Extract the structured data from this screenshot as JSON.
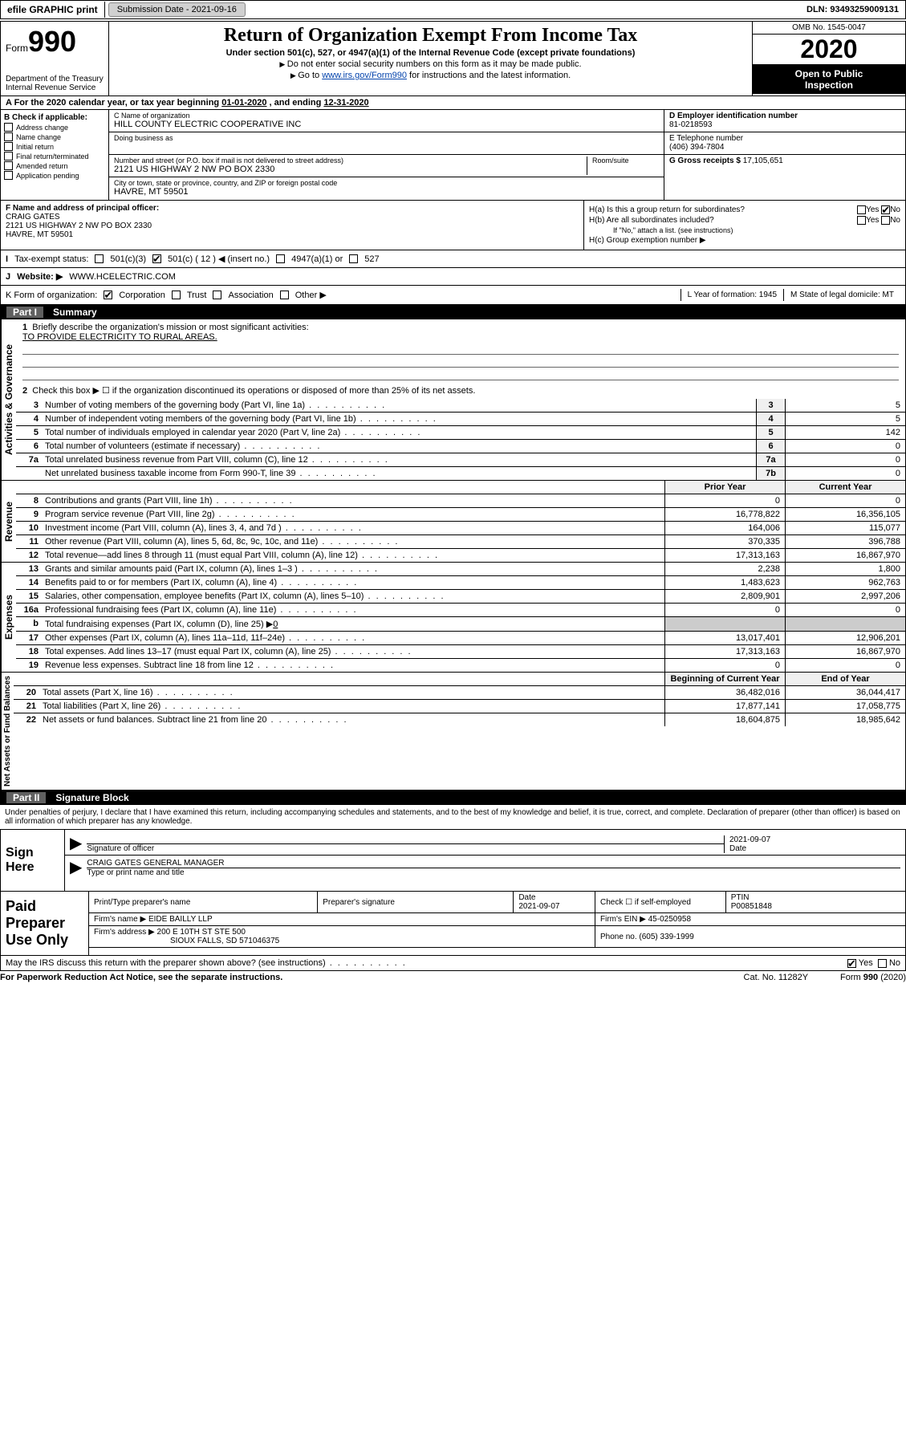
{
  "topbar": {
    "efile": "efile GRAPHIC print",
    "subdate_label": "Submission Date - ",
    "subdate": "2021-09-16",
    "dln_label": "DLN: ",
    "dln": "93493259009131"
  },
  "header": {
    "form_word": "Form",
    "form_num": "990",
    "dept1": "Department of the Treasury",
    "dept2": "Internal Revenue Service",
    "title": "Return of Organization Exempt From Income Tax",
    "sub": "Under section 501(c), 527, or 4947(a)(1) of the Internal Revenue Code (except private foundations)",
    "note1": "Do not enter social security numbers on this form as it may be made public.",
    "note2_pre": "Go to ",
    "note2_link": "www.irs.gov/Form990",
    "note2_post": " for instructions and the latest information.",
    "omb": "OMB No. 1545-0047",
    "year": "2020",
    "open1": "Open to Public",
    "open2": "Inspection"
  },
  "row_a": {
    "pre": "A For the 2020 calendar year, or tax year beginning ",
    "begin": "01-01-2020",
    "mid": " , and ending ",
    "end": "12-31-2020"
  },
  "col_b": {
    "label": "B Check if applicable:",
    "c1": "Address change",
    "c2": "Name change",
    "c3": "Initial return",
    "c4": "Final return/terminated",
    "c5": "Amended return",
    "c6": "Application pending"
  },
  "col_c": {
    "name_label": "C Name of organization",
    "name": "HILL COUNTY ELECTRIC COOPERATIVE INC",
    "dba_label": "Doing business as",
    "dba": "",
    "addr_label": "Number and street (or P.O. box if mail is not delivered to street address)",
    "room_label": "Room/suite",
    "addr": "2121 US HIGHWAY 2 NW PO BOX 2330",
    "city_label": "City or town, state or province, country, and ZIP or foreign postal code",
    "city": "HAVRE, MT  59501"
  },
  "col_d": {
    "ein_label": "D Employer identification number",
    "ein": "81-0218593",
    "phone_label": "E Telephone number",
    "phone": "(406) 394-7804",
    "gross_label": "G Gross receipts $",
    "gross": "17,105,651"
  },
  "row_f": {
    "label": "F  Name and address of principal officer:",
    "name": "CRAIG GATES",
    "addr1": "2121 US HIGHWAY 2 NW PO BOX 2330",
    "addr2": "HAVRE, MT  59501",
    "ha": "H(a)  Is this a group return for subordinates?",
    "hb": "H(b)  Are all subordinates included?",
    "hb_note": "If \"No,\" attach a list. (see instructions)",
    "hc": "H(c)  Group exemption number ▶",
    "yes": "Yes",
    "no": "No"
  },
  "row_i": {
    "label": "Tax-exempt status:",
    "o1": "501(c)(3)",
    "o2": "501(c) ( 12 ) ◀ (insert no.)",
    "o3": "4947(a)(1) or",
    "o4": "527"
  },
  "row_j": {
    "label": "J",
    "website_label": "Website: ▶",
    "website": "WWW.HCELECTRIC.COM"
  },
  "row_k": {
    "label": "K Form of organization:",
    "o1": "Corporation",
    "o2": "Trust",
    "o3": "Association",
    "o4": "Other ▶",
    "yof_label": "L Year of formation: ",
    "yof": "1945",
    "dom_label": "M State of legal domicile: ",
    "dom": "MT"
  },
  "part1": {
    "part": "Part I",
    "title": "Summary",
    "side_gov": "Activities & Governance",
    "side_rev": "Revenue",
    "side_exp": "Expenses",
    "side_net": "Net Assets or Fund Balances",
    "l1": "Briefly describe the organization's mission or most significant activities:",
    "l1v": "TO PROVIDE ELECTRICITY TO RURAL AREAS.",
    "l2": "Check this box ▶ ☐  if the organization discontinued its operations or disposed of more than 25% of its net assets.",
    "lines": {
      "3": {
        "d": "Number of voting members of the governing body (Part VI, line 1a)",
        "b": "3",
        "v": "5"
      },
      "4": {
        "d": "Number of independent voting members of the governing body (Part VI, line 1b)",
        "b": "4",
        "v": "5"
      },
      "5": {
        "d": "Total number of individuals employed in calendar year 2020 (Part V, line 2a)",
        "b": "5",
        "v": "142"
      },
      "6": {
        "d": "Total number of volunteers (estimate if necessary)",
        "b": "6",
        "v": "0"
      },
      "7a": {
        "d": "Total unrelated business revenue from Part VIII, column (C), line 12",
        "b": "7a",
        "v": "0"
      },
      "7b": {
        "d": "Net unrelated business taxable income from Form 990-T, line 39",
        "b": "7b",
        "v": "0"
      }
    },
    "hdr_prior": "Prior Year",
    "hdr_curr": "Current Year",
    "rev": {
      "8": {
        "d": "Contributions and grants (Part VIII, line 1h)",
        "p": "0",
        "c": "0"
      },
      "9": {
        "d": "Program service revenue (Part VIII, line 2g)",
        "p": "16,778,822",
        "c": "16,356,105"
      },
      "10": {
        "d": "Investment income (Part VIII, column (A), lines 3, 4, and 7d )",
        "p": "164,006",
        "c": "115,077"
      },
      "11": {
        "d": "Other revenue (Part VIII, column (A), lines 5, 6d, 8c, 9c, 10c, and 11e)",
        "p": "370,335",
        "c": "396,788"
      },
      "12": {
        "d": "Total revenue—add lines 8 through 11 (must equal Part VIII, column (A), line 12)",
        "p": "17,313,163",
        "c": "16,867,970"
      }
    },
    "exp": {
      "13": {
        "d": "Grants and similar amounts paid (Part IX, column (A), lines 1–3 )",
        "p": "2,238",
        "c": "1,800"
      },
      "14": {
        "d": "Benefits paid to or for members (Part IX, column (A), line 4)",
        "p": "1,483,623",
        "c": "962,763"
      },
      "15": {
        "d": "Salaries, other compensation, employee benefits (Part IX, column (A), lines 5–10)",
        "p": "2,809,901",
        "c": "2,997,206"
      },
      "16a": {
        "d": "Professional fundraising fees (Part IX, column (A), line 11e)",
        "p": "0",
        "c": "0"
      },
      "16b": {
        "d": "Total fundraising expenses (Part IX, column (D), line 25) ▶",
        "v": "0"
      },
      "17": {
        "d": "Other expenses (Part IX, column (A), lines 11a–11d, 11f–24e)",
        "p": "13,017,401",
        "c": "12,906,201"
      },
      "18": {
        "d": "Total expenses. Add lines 13–17 (must equal Part IX, column (A), line 25)",
        "p": "17,313,163",
        "c": "16,867,970"
      },
      "19": {
        "d": "Revenue less expenses. Subtract line 18 from line 12",
        "p": "0",
        "c": "0"
      }
    },
    "hdr_beg": "Beginning of Current Year",
    "hdr_end": "End of Year",
    "net": {
      "20": {
        "d": "Total assets (Part X, line 16)",
        "p": "36,482,016",
        "c": "36,044,417"
      },
      "21": {
        "d": "Total liabilities (Part X, line 26)",
        "p": "17,877,141",
        "c": "17,058,775"
      },
      "22": {
        "d": "Net assets or fund balances. Subtract line 21 from line 20",
        "p": "18,604,875",
        "c": "18,985,642"
      }
    }
  },
  "part2": {
    "part": "Part II",
    "title": "Signature Block",
    "penalty": "Under penalties of perjury, I declare that I have examined this return, including accompanying schedules and statements, and to the best of my knowledge and belief, it is true, correct, and complete. Declaration of preparer (other than officer) is based on all information of which preparer has any knowledge."
  },
  "sign": {
    "label": "Sign Here",
    "sig_label": "Signature of officer",
    "date_label": "Date",
    "date": "2021-09-07",
    "name": "CRAIG GATES  GENERAL MANAGER",
    "name_label": "Type or print name and title"
  },
  "prep": {
    "label": "Paid Preparer Use Only",
    "h1": "Print/Type preparer's name",
    "h2": "Preparer's signature",
    "h3": "Date",
    "h3v": "2021-09-07",
    "h4": "Check ☐ if self-employed",
    "h5": "PTIN",
    "h5v": "P00851848",
    "firm_label": "Firm's name    ▶",
    "firm": "EIDE BAILLY LLP",
    "fein_label": "Firm's EIN ▶",
    "fein": "45-0250958",
    "addr_label": "Firm's address ▶",
    "addr1": "200 E 10TH ST STE 500",
    "addr2": "SIOUX FALLS, SD  571046375",
    "phone_label": "Phone no.",
    "phone": "(605) 339-1999"
  },
  "discuss": {
    "q": "May the IRS discuss this return with the preparer shown above? (see instructions)",
    "yes": "Yes",
    "no": "No"
  },
  "footer": {
    "left": "For Paperwork Reduction Act Notice, see the separate instructions.",
    "mid": "Cat. No. 11282Y",
    "right": "Form 990 (2020)"
  }
}
